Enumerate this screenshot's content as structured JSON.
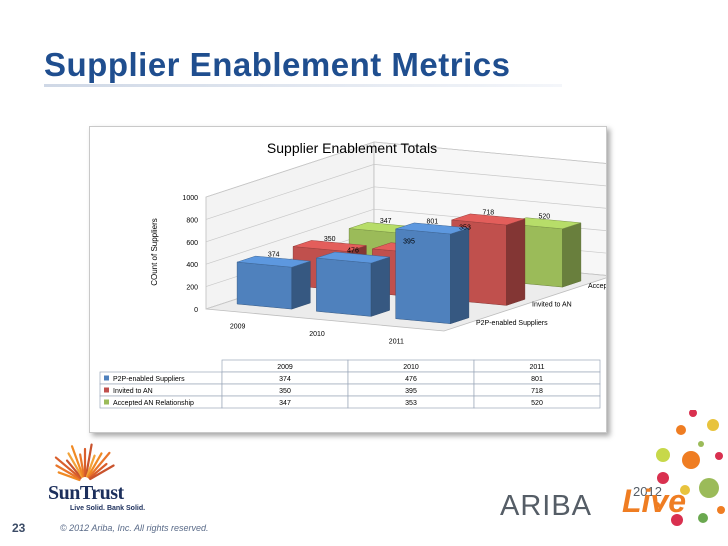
{
  "slide": {
    "title": "Supplier Enablement Metrics",
    "page_number": "23",
    "copyright": "© 2012 Ariba, Inc. All rights reserved."
  },
  "logos": {
    "suntrust_name": "SunTrust",
    "suntrust_tagline": "Live Solid. Bank Solid.",
    "ariba_year": "2012",
    "ariba_word": "ARIBA",
    "live_word": "Live"
  },
  "chart_data": {
    "type": "bar",
    "title": "Supplier Enablement Totals",
    "ylabel": "COunt of Suppliers",
    "xlabel": "",
    "ylim": [
      0,
      1000
    ],
    "yticks": [
      0,
      200,
      400,
      600,
      800,
      1000
    ],
    "categories": [
      "2009",
      "2010",
      "2011"
    ],
    "series": [
      {
        "name": "P2P-enabled Suppliers",
        "values": [
          374,
          476,
          801
        ],
        "color": "#4f81bd"
      },
      {
        "name": "Invited to AN",
        "values": [
          350,
          395,
          718
        ],
        "color": "#c0504d"
      },
      {
        "name": "Accepted AN Relationship",
        "values": [
          347,
          353,
          520
        ],
        "color": "#9bbb59"
      }
    ],
    "grid": true,
    "legend": "data-table"
  },
  "colors": {
    "title": "#1f4e8f",
    "p2p": "#4f81bd",
    "invited": "#c0504d",
    "accepted": "#9bbb59",
    "ariba_orange": "#ef7d22"
  }
}
